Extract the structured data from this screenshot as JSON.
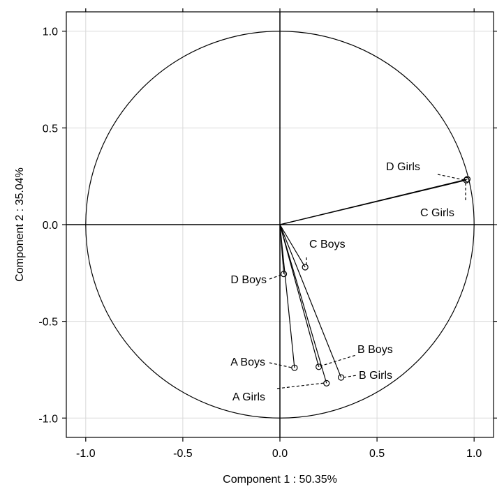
{
  "chart_data": {
    "type": "scatter",
    "subtype": "pca-correlation-circle",
    "title": "",
    "xlabel": "Component 1 : 50.35%",
    "ylabel": "Component 2 : 35.04%",
    "xlim": [
      -1.1,
      1.1
    ],
    "ylim": [
      -1.1,
      1.1
    ],
    "xticks": [
      -1.0,
      -0.5,
      0.0,
      0.5,
      1.0
    ],
    "yticks": [
      -1.0,
      -0.5,
      0.0,
      0.5,
      1.0
    ],
    "xtick_labels": [
      "-1.0",
      "-0.5",
      "0.0",
      "0.5",
      "1.0"
    ],
    "ytick_labels": [
      "-1.0",
      "-0.5",
      "0.0",
      "0.5",
      "1.0"
    ],
    "grid": true,
    "unit_circle": true,
    "colors": {
      "line": "#000000",
      "grid": "#d9d9d9",
      "background": "#ffffff"
    },
    "points": [
      {
        "label": "D Girls",
        "x": 0.965,
        "y": 0.235
      },
      {
        "label": "C Girls",
        "x": 0.96,
        "y": 0.23
      },
      {
        "label": "C Boys",
        "x": 0.13,
        "y": -0.22
      },
      {
        "label": "D Boys",
        "x": 0.02,
        "y": -0.255
      },
      {
        "label": "A Boys",
        "x": 0.075,
        "y": -0.74
      },
      {
        "label": "B Boys",
        "x": 0.2,
        "y": -0.735
      },
      {
        "label": "B Girls",
        "x": 0.315,
        "y": -0.79
      },
      {
        "label": "A Girls",
        "x": 0.24,
        "y": -0.82
      }
    ]
  }
}
